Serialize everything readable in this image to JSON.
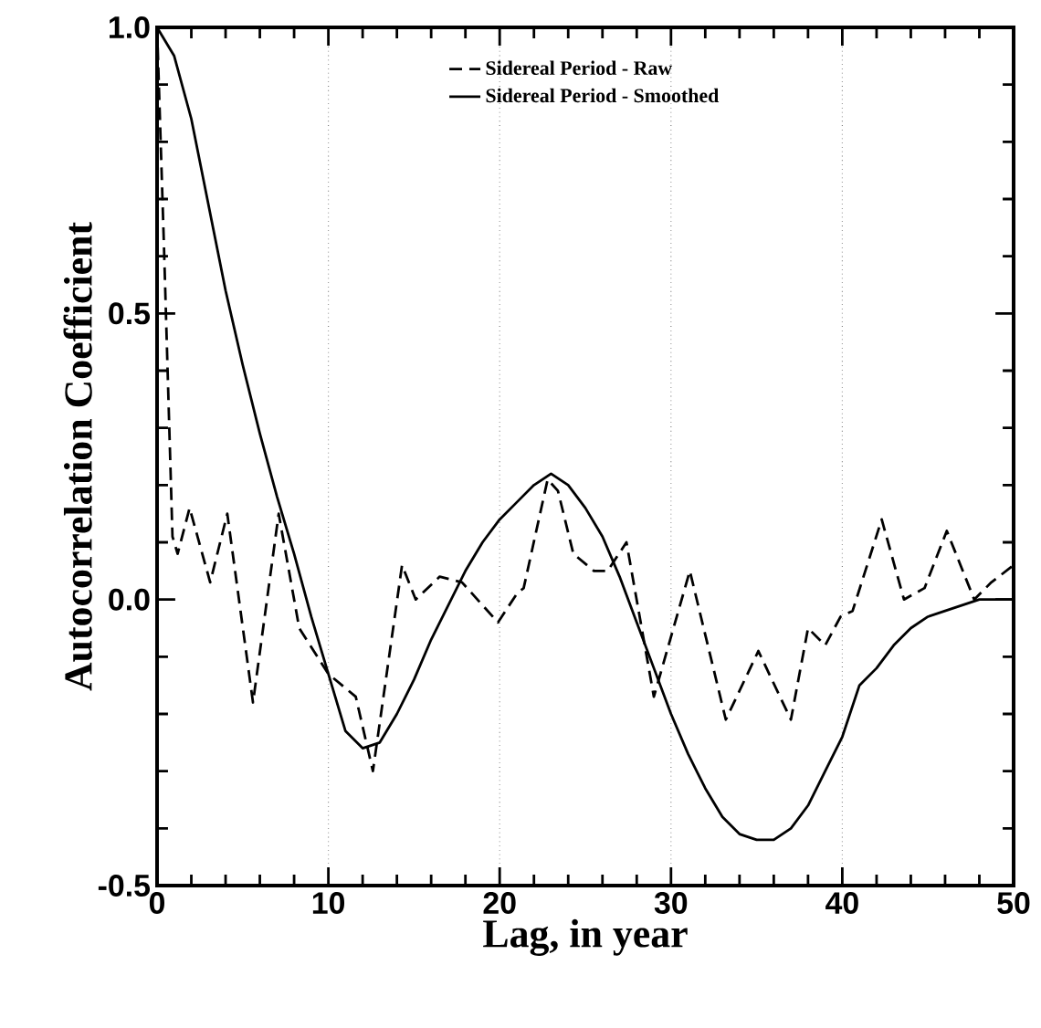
{
  "chart_data": {
    "type": "line",
    "xlabel": "Lag, in year",
    "ylabel": "Autocorrelation Coefficient",
    "xlim": [
      0,
      50
    ],
    "ylim": [
      -0.5,
      1.0
    ],
    "xticks": [
      0,
      10,
      20,
      30,
      40,
      50
    ],
    "yticks": [
      {
        "value": -0.5,
        "label": "-0.5"
      },
      {
        "value": 0,
        "label": "0.0"
      },
      {
        "value": 0.5,
        "label": "0.5"
      },
      {
        "value": 1,
        "label": "1.0"
      }
    ],
    "grid": "x",
    "legend": "top",
    "series": [
      {
        "name": "Sidereal Period - Raw",
        "color": "#000000",
        "line_style": "dashed",
        "x": [
          0,
          0.4,
          0.9,
          1.2,
          1.9,
          3.1,
          4.1,
          5.6,
          7.1,
          8.3,
          10,
          11.6,
          12.6,
          14.3,
          15.1,
          16.5,
          17.8,
          19.9,
          21,
          21.4,
          22.8,
          23.4,
          24.3,
          25.5,
          26.3,
          27.4,
          29,
          31.1,
          33.2,
          35.1,
          37,
          38,
          39,
          39.9,
          40.6,
          42.3,
          43.6,
          44.8,
          46.1,
          47.7,
          48.7,
          50
        ],
        "values": [
          1.0,
          0.62,
          0.11,
          0.08,
          0.16,
          0.03,
          0.15,
          -0.18,
          0.15,
          -0.05,
          -0.13,
          -0.17,
          -0.3,
          0.06,
          0.0,
          0.04,
          0.03,
          -0.04,
          0.01,
          0.02,
          0.21,
          0.19,
          0.08,
          0.05,
          0.05,
          0.1,
          -0.17,
          0.05,
          -0.21,
          -0.09,
          -0.21,
          -0.05,
          -0.08,
          -0.03,
          -0.02,
          0.14,
          0.0,
          0.02,
          0.12,
          0.0,
          0.03,
          0.06
        ]
      },
      {
        "name": "Sidereal Period - Smoothed",
        "color": "#000000",
        "line_style": "solid",
        "x": [
          0,
          1,
          2,
          3,
          4,
          5,
          6,
          7,
          8,
          9,
          10,
          11,
          12,
          13,
          14,
          15,
          16,
          17,
          18,
          19,
          20,
          21,
          22,
          23,
          24,
          25,
          26,
          27,
          28,
          29,
          30,
          31,
          32,
          33,
          34,
          35,
          36,
          37,
          38,
          39,
          40,
          41,
          42,
          43,
          44,
          45,
          46,
          47,
          48,
          49,
          50
        ],
        "values": [
          1.0,
          0.95,
          0.84,
          0.69,
          0.54,
          0.41,
          0.29,
          0.18,
          0.08,
          -0.03,
          -0.13,
          -0.23,
          -0.26,
          -0.25,
          -0.2,
          -0.14,
          -0.07,
          -0.01,
          0.05,
          0.1,
          0.14,
          0.17,
          0.2,
          0.22,
          0.2,
          0.16,
          0.11,
          0.04,
          -0.04,
          -0.12,
          -0.2,
          -0.27,
          -0.33,
          -0.38,
          -0.41,
          -0.42,
          -0.42,
          -0.4,
          -0.36,
          -0.3,
          -0.24,
          -0.15,
          -0.12,
          -0.08,
          -0.05,
          -0.03,
          -0.02,
          -0.01,
          0.0,
          0.0,
          0.0
        ]
      }
    ]
  }
}
